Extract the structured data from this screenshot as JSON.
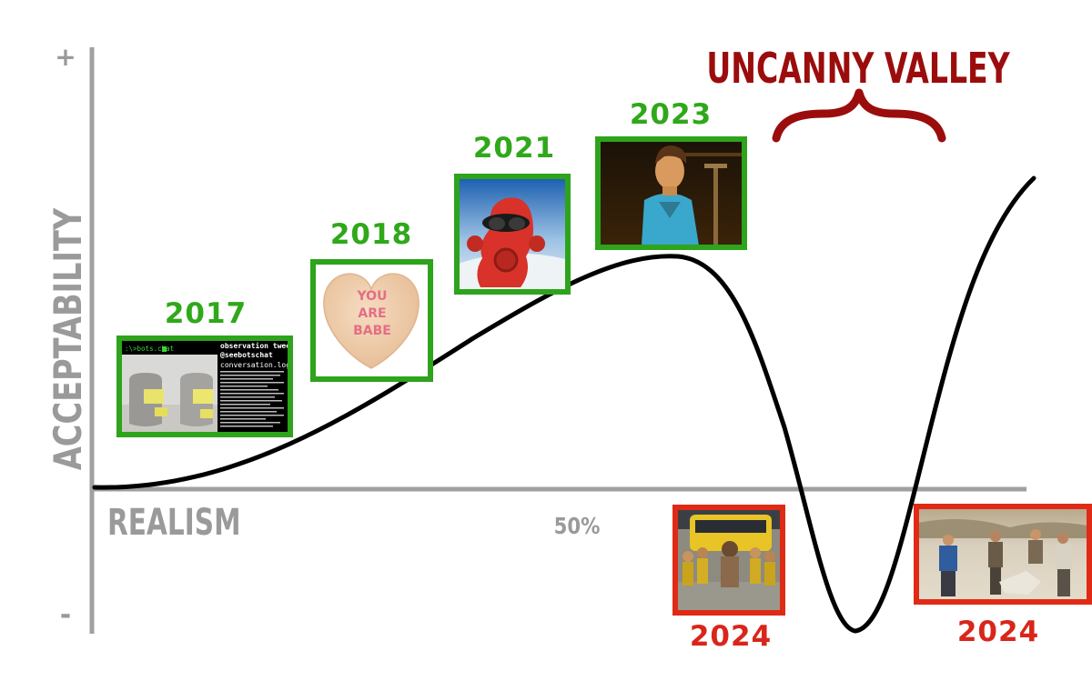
{
  "axes": {
    "y_label": "ACCEPTABILITY",
    "x_label": "REALISM",
    "y_top_marker": "+",
    "y_bottom_marker": "-",
    "x_mid_tick": "50%"
  },
  "uncanny_valley_label": "UNCANNY VALLEY",
  "colors": {
    "axis": "#9a9a9a",
    "curve": "#000000",
    "positive_frame": "#2ea31c",
    "negative_frame": "#e02a16",
    "positive_year": "#2fa81a",
    "negative_year": "#d9261a",
    "uncanny_valley": "#9b0d0d"
  },
  "milestones": [
    {
      "year": "2017",
      "status": "positive",
      "image": {
        "prompt_text": ":\\>bots.chat",
        "header_line_1": "observation tweets",
        "header_line_2": "@seebotschat",
        "log_title": "conversation.log"
      }
    },
    {
      "year": "2018",
      "status": "positive",
      "image": {
        "heart_line_1": "YOU",
        "heart_line_2": "ARE",
        "heart_line_3": "BABE"
      }
    },
    {
      "year": "2021",
      "status": "positive",
      "image": {}
    },
    {
      "year": "2023",
      "status": "positive",
      "image": {}
    },
    {
      "year": "2024",
      "status": "negative",
      "image": {}
    },
    {
      "year": "2024",
      "status": "negative",
      "image": {}
    }
  ]
}
